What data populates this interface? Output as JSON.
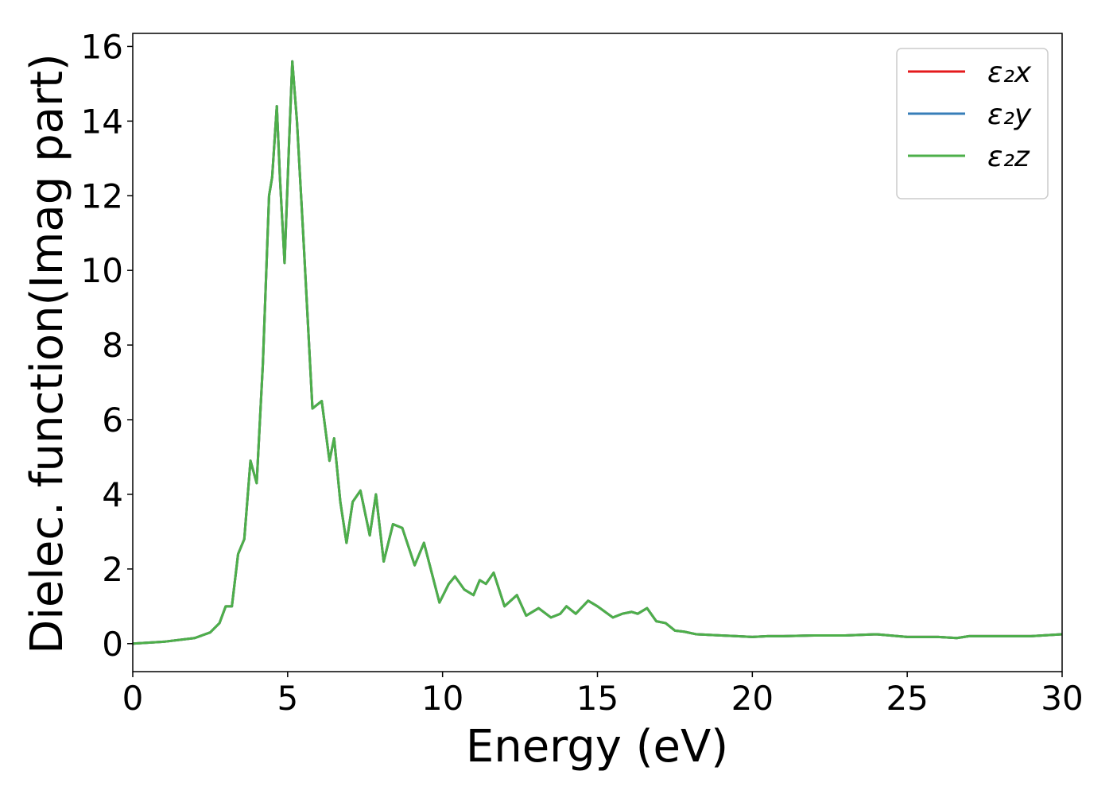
{
  "chart_data": {
    "type": "line",
    "xlabel": "Energy (eV)",
    "ylabel": "Dielec. function(Imag part)",
    "x": [
      0,
      1,
      2,
      2.5,
      2.8,
      3.0,
      3.2,
      3.4,
      3.6,
      3.8,
      4.0,
      4.2,
      4.4,
      4.5,
      4.65,
      4.75,
      4.9,
      5.05,
      5.15,
      5.3,
      5.5,
      5.8,
      6.1,
      6.35,
      6.5,
      6.7,
      6.9,
      7.1,
      7.35,
      7.65,
      7.85,
      8.1,
      8.4,
      8.7,
      9.1,
      9.4,
      9.9,
      10.2,
      10.4,
      10.7,
      11.0,
      11.2,
      11.4,
      11.65,
      12.0,
      12.4,
      12.7,
      13.1,
      13.5,
      13.8,
      14.0,
      14.3,
      14.7,
      15.0,
      15.5,
      15.8,
      16.1,
      16.3,
      16.6,
      16.9,
      17.2,
      17.5,
      17.8,
      18.2,
      19,
      19.5,
      20,
      20.5,
      21,
      22,
      23,
      24,
      25,
      26,
      26.6,
      27,
      28,
      29,
      30
    ],
    "series": [
      {
        "name": "ε₂x",
        "color": "#e41a1c",
        "values": [
          0,
          0.05,
          0.15,
          0.3,
          0.55,
          1.0,
          1.0,
          2.4,
          2.8,
          4.9,
          4.3,
          7.5,
          12.0,
          12.5,
          14.4,
          12.5,
          10.2,
          13.5,
          15.6,
          14.0,
          11.0,
          6.3,
          6.5,
          4.9,
          5.5,
          3.8,
          2.7,
          3.8,
          4.1,
          2.9,
          4.0,
          2.2,
          3.2,
          3.1,
          2.1,
          2.7,
          1.1,
          1.6,
          1.8,
          1.45,
          1.3,
          1.7,
          1.6,
          1.9,
          1.0,
          1.3,
          0.75,
          0.95,
          0.7,
          0.8,
          1.0,
          0.8,
          1.15,
          1.0,
          0.7,
          0.8,
          0.85,
          0.8,
          0.95,
          0.6,
          0.55,
          0.35,
          0.32,
          0.25,
          0.22,
          0.2,
          0.18,
          0.2,
          0.2,
          0.22,
          0.22,
          0.25,
          0.18,
          0.18,
          0.15,
          0.2,
          0.2,
          0.2,
          0.25
        ]
      },
      {
        "name": "ε₂y",
        "color": "#377eb8",
        "values": [
          0,
          0.05,
          0.15,
          0.3,
          0.55,
          1.0,
          1.0,
          2.4,
          2.8,
          4.9,
          4.3,
          7.5,
          12.0,
          12.5,
          14.4,
          12.5,
          10.2,
          13.5,
          15.6,
          14.0,
          11.0,
          6.3,
          6.5,
          4.9,
          5.5,
          3.8,
          2.7,
          3.8,
          4.1,
          2.9,
          4.0,
          2.2,
          3.2,
          3.1,
          2.1,
          2.7,
          1.1,
          1.6,
          1.8,
          1.45,
          1.3,
          1.7,
          1.6,
          1.9,
          1.0,
          1.3,
          0.75,
          0.95,
          0.7,
          0.8,
          1.0,
          0.8,
          1.15,
          1.0,
          0.7,
          0.8,
          0.85,
          0.8,
          0.95,
          0.6,
          0.55,
          0.35,
          0.32,
          0.25,
          0.22,
          0.2,
          0.18,
          0.2,
          0.2,
          0.22,
          0.22,
          0.25,
          0.18,
          0.18,
          0.15,
          0.2,
          0.2,
          0.2,
          0.25
        ]
      },
      {
        "name": "ε₂z",
        "color": "#4daf4a",
        "values": [
          0,
          0.05,
          0.15,
          0.3,
          0.55,
          1.0,
          1.0,
          2.4,
          2.8,
          4.9,
          4.3,
          7.5,
          12.0,
          12.5,
          14.4,
          12.5,
          10.2,
          13.5,
          15.6,
          14.0,
          11.0,
          6.3,
          6.5,
          4.9,
          5.5,
          3.8,
          2.7,
          3.8,
          4.1,
          2.9,
          4.0,
          2.2,
          3.2,
          3.1,
          2.1,
          2.7,
          1.1,
          1.6,
          1.8,
          1.45,
          1.3,
          1.7,
          1.6,
          1.9,
          1.0,
          1.3,
          0.75,
          0.95,
          0.7,
          0.8,
          1.0,
          0.8,
          1.15,
          1.0,
          0.7,
          0.8,
          0.85,
          0.8,
          0.95,
          0.6,
          0.55,
          0.35,
          0.32,
          0.25,
          0.22,
          0.2,
          0.18,
          0.2,
          0.2,
          0.22,
          0.22,
          0.25,
          0.18,
          0.18,
          0.15,
          0.2,
          0.2,
          0.2,
          0.25
        ]
      }
    ],
    "xlim": [
      0,
      30
    ],
    "xticks": [
      0,
      5,
      10,
      15,
      20,
      25,
      30
    ],
    "ylim": [
      -0.75,
      16.35
    ],
    "yticks": [
      0,
      2,
      4,
      6,
      8,
      10,
      12,
      14,
      16
    ],
    "grid": false,
    "legend": "upper right"
  }
}
